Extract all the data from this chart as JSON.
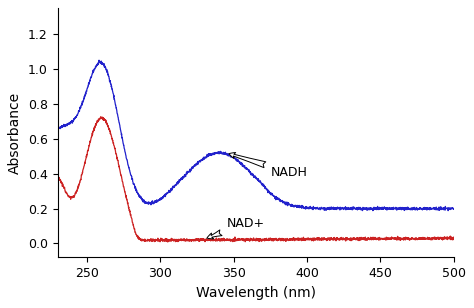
{
  "title": "",
  "xlabel": "Wavelength (nm)",
  "ylabel": "Absorbance",
  "xlim": [
    230,
    500
  ],
  "ylim": [
    -0.08,
    1.35
  ],
  "xticks": [
    250,
    300,
    350,
    400,
    450,
    500
  ],
  "yticks": [
    0.0,
    0.2,
    0.4,
    0.6,
    0.8,
    1.0,
    1.2
  ],
  "nadh_color": "#2222CC",
  "nad_color": "#CC2222",
  "background_color": "#ffffff",
  "nadh_label": "NADH",
  "nad_label": "NAD+"
}
